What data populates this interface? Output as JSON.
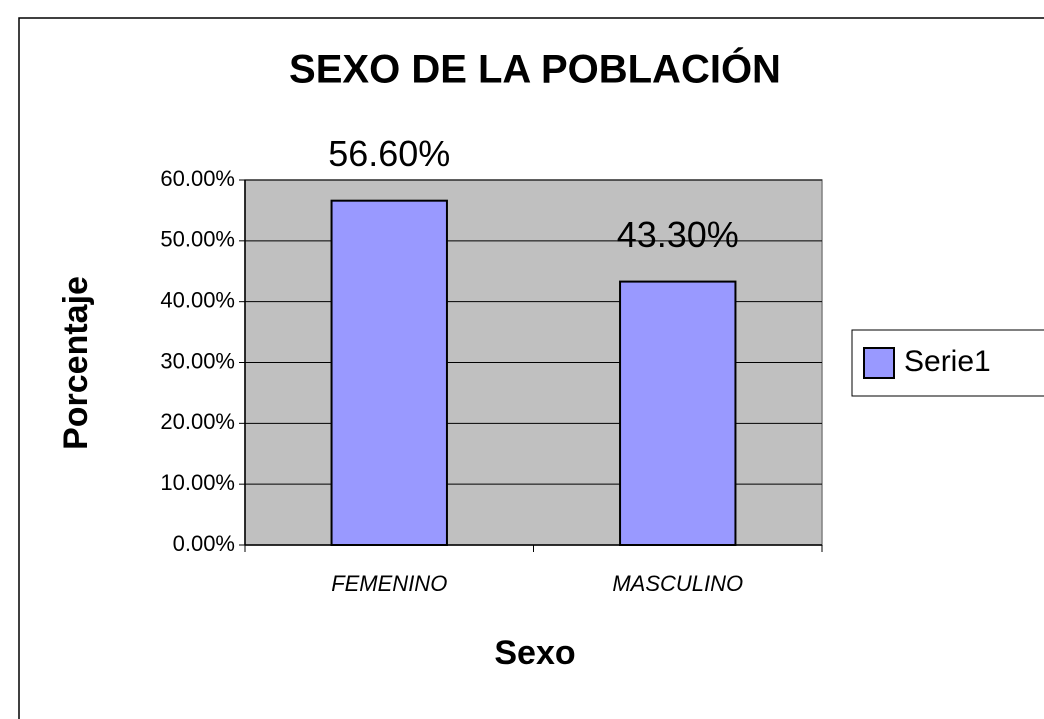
{
  "chart_data": {
    "type": "bar",
    "title": "SEXO DE LA POBLACIÓN",
    "x_label": "Sexo",
    "y_label": "Porcentaje",
    "categories": [
      "FEMENINO",
      "MASCULINO"
    ],
    "series": [
      {
        "name": "Serie1",
        "color": "#9999ff",
        "values": [
          56.6,
          43.3
        ],
        "value_labels": [
          "56.60%",
          "43.30%"
        ]
      }
    ],
    "ylim": [
      0,
      60
    ],
    "yticks": [
      {
        "value": 0,
        "label": "0.00%"
      },
      {
        "value": 10,
        "label": "10.00%"
      },
      {
        "value": 20,
        "label": "20.00%"
      },
      {
        "value": 30,
        "label": "30.00%"
      },
      {
        "value": 40,
        "label": "40.00%"
      },
      {
        "value": 50,
        "label": "50.00%"
      },
      {
        "value": 60,
        "label": "60.00%"
      }
    ],
    "grid": true,
    "legend": "right",
    "plot_background": "#c0c0c0"
  }
}
